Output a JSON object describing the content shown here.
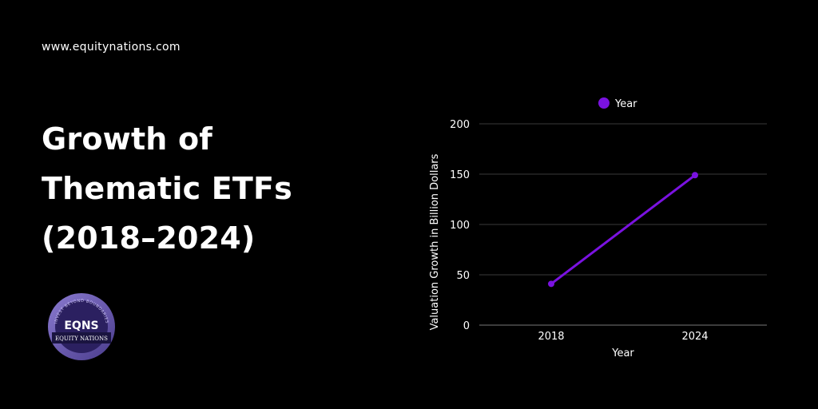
{
  "header": {
    "website": "www.equitynations.com"
  },
  "hero": {
    "title_lines": [
      "Growth of",
      "Thematic ETFs",
      "(2018–2024)"
    ]
  },
  "logo": {
    "brand_mark": "EQNS",
    "brand_name": "EQUITY NATIONS",
    "tagline": "INVEST BEYOND BOUNDARIES"
  },
  "colors": {
    "background": "#000000",
    "text": "#ffffff",
    "accent": "#7a12e0",
    "grid": "#3a3a3a"
  },
  "chart_data": {
    "type": "line",
    "title": "",
    "xlabel": "Year",
    "ylabel": "Valuation Growth in Billion Dollars",
    "categories": [
      "2018",
      "2024"
    ],
    "series": [
      {
        "name": "Year",
        "values": [
          41,
          149
        ]
      }
    ],
    "ylim": [
      0,
      200
    ],
    "yticks": [
      0,
      50,
      100,
      150,
      200
    ],
    "grid": true,
    "legend": "top-center"
  }
}
